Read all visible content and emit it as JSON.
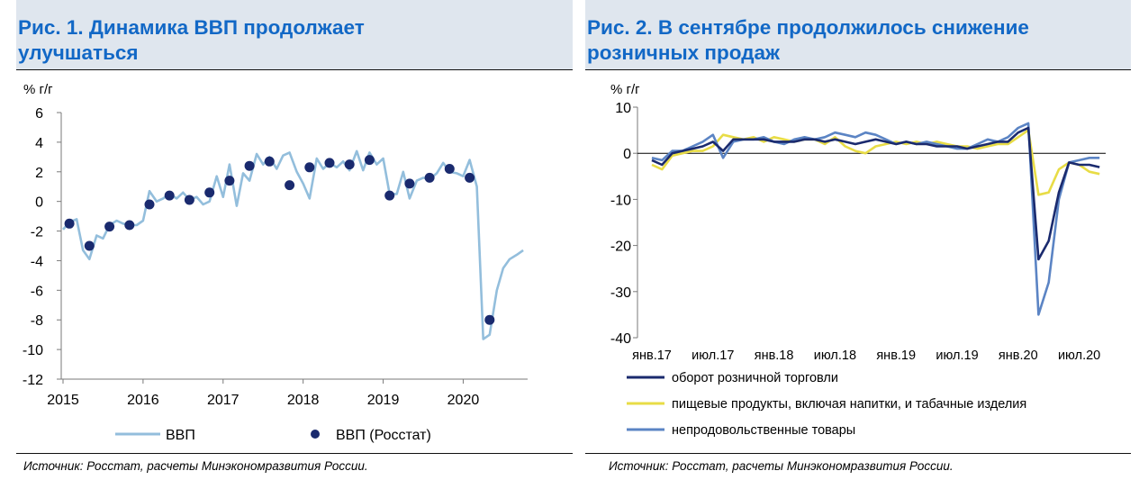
{
  "colors": {
    "title_bg": "#dfe6ee",
    "title_text": "#1268c6",
    "gdp_line": "#93bedc",
    "gdp_dots": "#1a2a6e",
    "retail_total": "#1a2a6e",
    "retail_food": "#e8dc46",
    "retail_nonfood": "#5b84c4"
  },
  "left": {
    "title_line1": "Рис. 1. Динамика ВВП продолжает",
    "title_line2": "улучшаться",
    "source": "Источник: Росстат, расчеты Минэкономразвития России."
  },
  "right": {
    "title_line1": "Рис. 2. В сентябре продолжилось снижение",
    "title_line2": "розничных продаж",
    "source": "Источник: Росстат, расчеты Минэкономразвития России."
  },
  "chart_data": [
    {
      "type": "line",
      "ylabel": "% г/г",
      "ylim": [
        -12,
        6
      ],
      "yticks": [
        6,
        4,
        2,
        0,
        -2,
        -4,
        -6,
        -8,
        -10,
        -12
      ],
      "xlim": [
        2015,
        2020.85
      ],
      "xticks": [
        2015,
        2016,
        2017,
        2018,
        2019,
        2020
      ],
      "xtick_labels": [
        "2015",
        "2016",
        "2017",
        "2018",
        "2019",
        "2020"
      ],
      "legend_position": "bottom",
      "series": [
        {
          "name": "ВВП",
          "style": "line",
          "points": [
            [
              2015.0,
              -1.9
            ],
            [
              2015.08,
              -1.4
            ],
            [
              2015.17,
              -1.2
            ],
            [
              2015.25,
              -3.3
            ],
            [
              2015.33,
              -3.9
            ],
            [
              2015.42,
              -2.3
            ],
            [
              2015.5,
              -2.5
            ],
            [
              2015.58,
              -1.6
            ],
            [
              2015.67,
              -1.3
            ],
            [
              2015.75,
              -1.5
            ],
            [
              2015.83,
              -1.6
            ],
            [
              2015.92,
              -1.6
            ],
            [
              2016.0,
              -1.3
            ],
            [
              2016.08,
              0.7
            ],
            [
              2016.17,
              0.0
            ],
            [
              2016.25,
              0.2
            ],
            [
              2016.33,
              0.5
            ],
            [
              2016.42,
              0.2
            ],
            [
              2016.5,
              0.6
            ],
            [
              2016.58,
              0.1
            ],
            [
              2016.67,
              0.3
            ],
            [
              2016.75,
              -0.2
            ],
            [
              2016.83,
              0.0
            ],
            [
              2016.92,
              1.7
            ],
            [
              2017.0,
              0.3
            ],
            [
              2017.08,
              2.5
            ],
            [
              2017.17,
              -0.3
            ],
            [
              2017.25,
              1.9
            ],
            [
              2017.33,
              1.4
            ],
            [
              2017.42,
              3.2
            ],
            [
              2017.5,
              2.5
            ],
            [
              2017.58,
              3.0
            ],
            [
              2017.67,
              2.2
            ],
            [
              2017.75,
              3.1
            ],
            [
              2017.83,
              3.3
            ],
            [
              2017.92,
              2.0
            ],
            [
              2018.0,
              1.2
            ],
            [
              2018.08,
              0.2
            ],
            [
              2018.17,
              2.9
            ],
            [
              2018.25,
              2.2
            ],
            [
              2018.33,
              2.6
            ],
            [
              2018.42,
              2.3
            ],
            [
              2018.5,
              2.7
            ],
            [
              2018.58,
              2.1
            ],
            [
              2018.67,
              3.4
            ],
            [
              2018.75,
              2.1
            ],
            [
              2018.83,
              3.3
            ],
            [
              2018.92,
              2.5
            ],
            [
              2019.0,
              2.9
            ],
            [
              2019.08,
              0.5
            ],
            [
              2019.17,
              0.5
            ],
            [
              2019.25,
              2.0
            ],
            [
              2019.33,
              0.2
            ],
            [
              2019.42,
              1.4
            ],
            [
              2019.5,
              1.6
            ],
            [
              2019.58,
              1.5
            ],
            [
              2019.67,
              1.9
            ],
            [
              2019.75,
              2.6
            ],
            [
              2019.83,
              2.0
            ],
            [
              2019.92,
              1.9
            ],
            [
              2020.0,
              1.7
            ],
            [
              2020.08,
              2.8
            ],
            [
              2020.17,
              1.0
            ],
            [
              2020.25,
              -9.3
            ],
            [
              2020.33,
              -9.0
            ],
            [
              2020.42,
              -6.0
            ],
            [
              2020.5,
              -4.5
            ],
            [
              2020.58,
              -3.9
            ],
            [
              2020.67,
              -3.6
            ],
            [
              2020.75,
              -3.3
            ]
          ]
        },
        {
          "name": "ВВП (Росстат)",
          "style": "dots",
          "points": [
            [
              2015.08,
              -1.5
            ],
            [
              2015.33,
              -3.0
            ],
            [
              2015.58,
              -1.7
            ],
            [
              2015.83,
              -1.6
            ],
            [
              2016.08,
              -0.2
            ],
            [
              2016.33,
              0.4
            ],
            [
              2016.58,
              0.1
            ],
            [
              2016.83,
              0.6
            ],
            [
              2017.08,
              1.4
            ],
            [
              2017.33,
              2.4
            ],
            [
              2017.58,
              2.7
            ],
            [
              2017.83,
              1.1
            ],
            [
              2018.08,
              2.3
            ],
            [
              2018.33,
              2.6
            ],
            [
              2018.58,
              2.5
            ],
            [
              2018.83,
              2.8
            ],
            [
              2019.08,
              0.4
            ],
            [
              2019.33,
              1.2
            ],
            [
              2019.58,
              1.6
            ],
            [
              2019.83,
              2.2
            ],
            [
              2020.08,
              1.6
            ],
            [
              2020.33,
              -8.0
            ]
          ]
        }
      ]
    },
    {
      "type": "line",
      "ylabel": "% г/г",
      "ylim": [
        -40,
        10
      ],
      "yticks": [
        10,
        0,
        -10,
        -20,
        -30,
        -40
      ],
      "x_start": "янв.17",
      "x_months": 45,
      "xtick_labels": [
        "янв.17",
        "июл.17",
        "янв.18",
        "июл.18",
        "янв.19",
        "июл.19",
        "янв.20",
        "июл.20"
      ],
      "xtick_index": [
        0,
        6,
        12,
        18,
        24,
        30,
        36,
        42
      ],
      "legend_position": "bottom",
      "series": [
        {
          "name": "оборот розничной торговли",
          "values": [
            -1.5,
            -2.5,
            0.0,
            0.5,
            1.0,
            1.5,
            2.5,
            0.5,
            3.0,
            3.0,
            3.0,
            3.0,
            2.5,
            2.5,
            2.5,
            3.0,
            3.0,
            2.5,
            3.0,
            2.5,
            2.0,
            2.5,
            3.0,
            2.5,
            2.0,
            2.5,
            2.0,
            2.0,
            1.5,
            1.5,
            1.5,
            1.0,
            1.5,
            2.0,
            2.5,
            2.5,
            4.5,
            5.5,
            -23.0,
            -19.0,
            -8.5,
            -2.0,
            -2.5,
            -2.5,
            -3.0
          ]
        },
        {
          "name": "пищевые продукты, включая напитки, и табачные изделия",
          "values": [
            -2.5,
            -3.5,
            -0.5,
            0.0,
            0.5,
            0.5,
            1.5,
            4.0,
            3.5,
            3.0,
            3.5,
            2.5,
            3.5,
            3.0,
            2.5,
            3.0,
            3.0,
            2.0,
            3.5,
            1.5,
            0.5,
            0.0,
            1.5,
            2.0,
            2.5,
            2.0,
            2.5,
            2.0,
            2.5,
            2.0,
            1.5,
            1.5,
            1.0,
            1.5,
            2.0,
            2.0,
            3.5,
            5.0,
            -9.0,
            -8.5,
            -3.5,
            -2.0,
            -2.5,
            -4.0,
            -4.5
          ]
        },
        {
          "name": "непродовольственные товары",
          "values": [
            -1.0,
            -1.5,
            0.5,
            0.5,
            1.5,
            2.5,
            4.0,
            -1.0,
            2.5,
            3.0,
            3.0,
            3.5,
            2.5,
            2.0,
            3.0,
            3.5,
            3.0,
            3.5,
            4.5,
            4.0,
            3.5,
            4.5,
            4.0,
            3.0,
            2.0,
            2.5,
            2.0,
            2.5,
            2.0,
            1.5,
            1.0,
            1.0,
            2.0,
            3.0,
            2.5,
            3.5,
            5.5,
            6.5,
            -35.0,
            -28.0,
            -10.0,
            -2.0,
            -1.5,
            -1.0,
            -1.0
          ]
        }
      ]
    }
  ]
}
